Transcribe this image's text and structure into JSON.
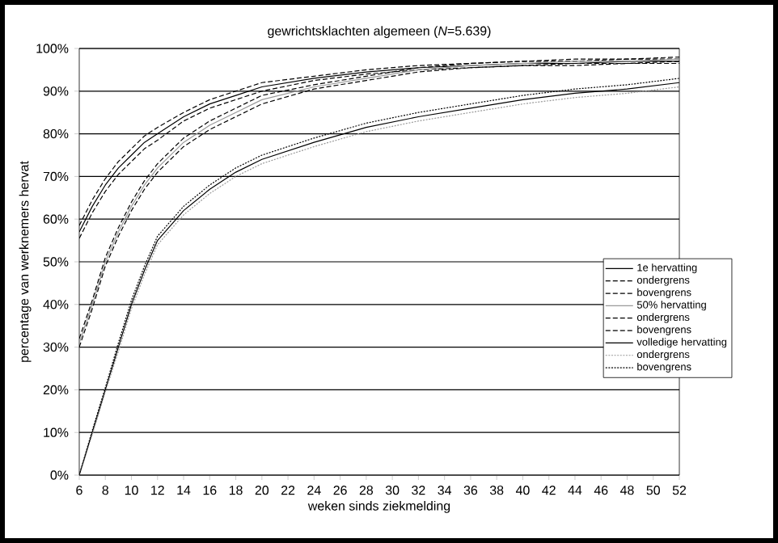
{
  "chart_data": {
    "type": "line",
    "title": "gewrichtsklachten algemeen (*N*=5.639)",
    "xlabel": "weken sinds ziekmelding",
    "ylabel": "percentage van werknemers hervat",
    "x": [
      6,
      7,
      8,
      9,
      10,
      11,
      12,
      14,
      16,
      18,
      20,
      24,
      28,
      32,
      36,
      40,
      44,
      48,
      52
    ],
    "xlim": [
      6,
      52
    ],
    "xticks": [
      6,
      8,
      10,
      12,
      14,
      16,
      18,
      20,
      22,
      24,
      26,
      28,
      30,
      32,
      34,
      36,
      38,
      40,
      42,
      44,
      46,
      48,
      50,
      52
    ],
    "ylim": [
      0,
      100
    ],
    "yticks": [
      {
        "value": 0,
        "label": "0%"
      },
      {
        "value": 10,
        "label": "10%"
      },
      {
        "value": 20,
        "label": "20%"
      },
      {
        "value": 30,
        "label": "30%"
      },
      {
        "value": 40,
        "label": "40%"
      },
      {
        "value": 50,
        "label": "50%"
      },
      {
        "value": 60,
        "label": "60%"
      },
      {
        "value": 70,
        "label": "70%"
      },
      {
        "value": 80,
        "label": "80%"
      },
      {
        "value": 90,
        "label": "90%"
      },
      {
        "value": 100,
        "label": "100%"
      }
    ],
    "grid": "y",
    "legend": "right",
    "marker": "none",
    "series": [
      {
        "name": "1e hervatting",
        "color": "#000000",
        "line_style": "solid",
        "values": [
          57,
          63,
          68,
          72,
          75,
          78,
          80,
          84,
          87,
          89,
          91,
          93,
          94.5,
          95.5,
          96,
          96.5,
          96.5,
          97,
          97
        ]
      },
      {
        "name": "ondergrens",
        "color": "#000000",
        "line_style": "dashed",
        "values": [
          55.5,
          61.5,
          66.5,
          70.5,
          73.5,
          76.5,
          78.5,
          83,
          86,
          88,
          90,
          92.5,
          94,
          95,
          95.5,
          96,
          96,
          96.5,
          96.5
        ]
      },
      {
        "name": "bovengrens",
        "color": "#000000",
        "line_style": "dashed",
        "values": [
          58.5,
          64.5,
          69.5,
          73.5,
          76.5,
          79.5,
          81.5,
          85,
          88,
          90,
          92,
          93.5,
          95,
          96,
          96.5,
          97,
          97,
          97.5,
          97.5
        ]
      },
      {
        "name": "50% hervatting",
        "color": "#999999",
        "line_style": "solid",
        "values": [
          31,
          40,
          50,
          57,
          63,
          68,
          72,
          78,
          82,
          85,
          88,
          91,
          93,
          95,
          96,
          96.5,
          97,
          97,
          97.5
        ]
      },
      {
        "name": "ondergrens",
        "color": "#000000",
        "line_style": "dashed",
        "values": [
          30,
          39,
          49,
          56,
          62,
          67,
          71,
          77,
          81,
          84,
          87,
          90.5,
          92.5,
          94.5,
          95.5,
          96,
          96.5,
          96.5,
          97
        ]
      },
      {
        "name": "bovengrens",
        "color": "#000000",
        "line_style": "dashed",
        "values": [
          32,
          41,
          51,
          58,
          64,
          69,
          73,
          79,
          83,
          86,
          89,
          91.5,
          93.5,
          95.5,
          96.5,
          97,
          97.5,
          97.5,
          98
        ]
      },
      {
        "name": "volledige hervatting",
        "color": "#000000",
        "line_style": "solid",
        "values": [
          0,
          10,
          20,
          30,
          40,
          48,
          55,
          62,
          67,
          71,
          74,
          78,
          81.5,
          84,
          86,
          88,
          89.5,
          90.5,
          92
        ]
      },
      {
        "name": "ondergrens",
        "color": "#999999",
        "line_style": "dotted",
        "values": [
          0,
          9.5,
          19.5,
          29,
          39,
          47,
          54,
          61,
          66,
          70,
          73,
          77,
          80.5,
          83,
          85,
          87,
          88.5,
          89.5,
          91
        ]
      },
      {
        "name": "bovengrens",
        "color": "#000000",
        "line_style": "dotted",
        "values": [
          0,
          10.5,
          20.5,
          31,
          41,
          49,
          56,
          63,
          68,
          72,
          75,
          79,
          82.5,
          85,
          87,
          89,
          90.5,
          91.5,
          93
        ]
      }
    ]
  }
}
